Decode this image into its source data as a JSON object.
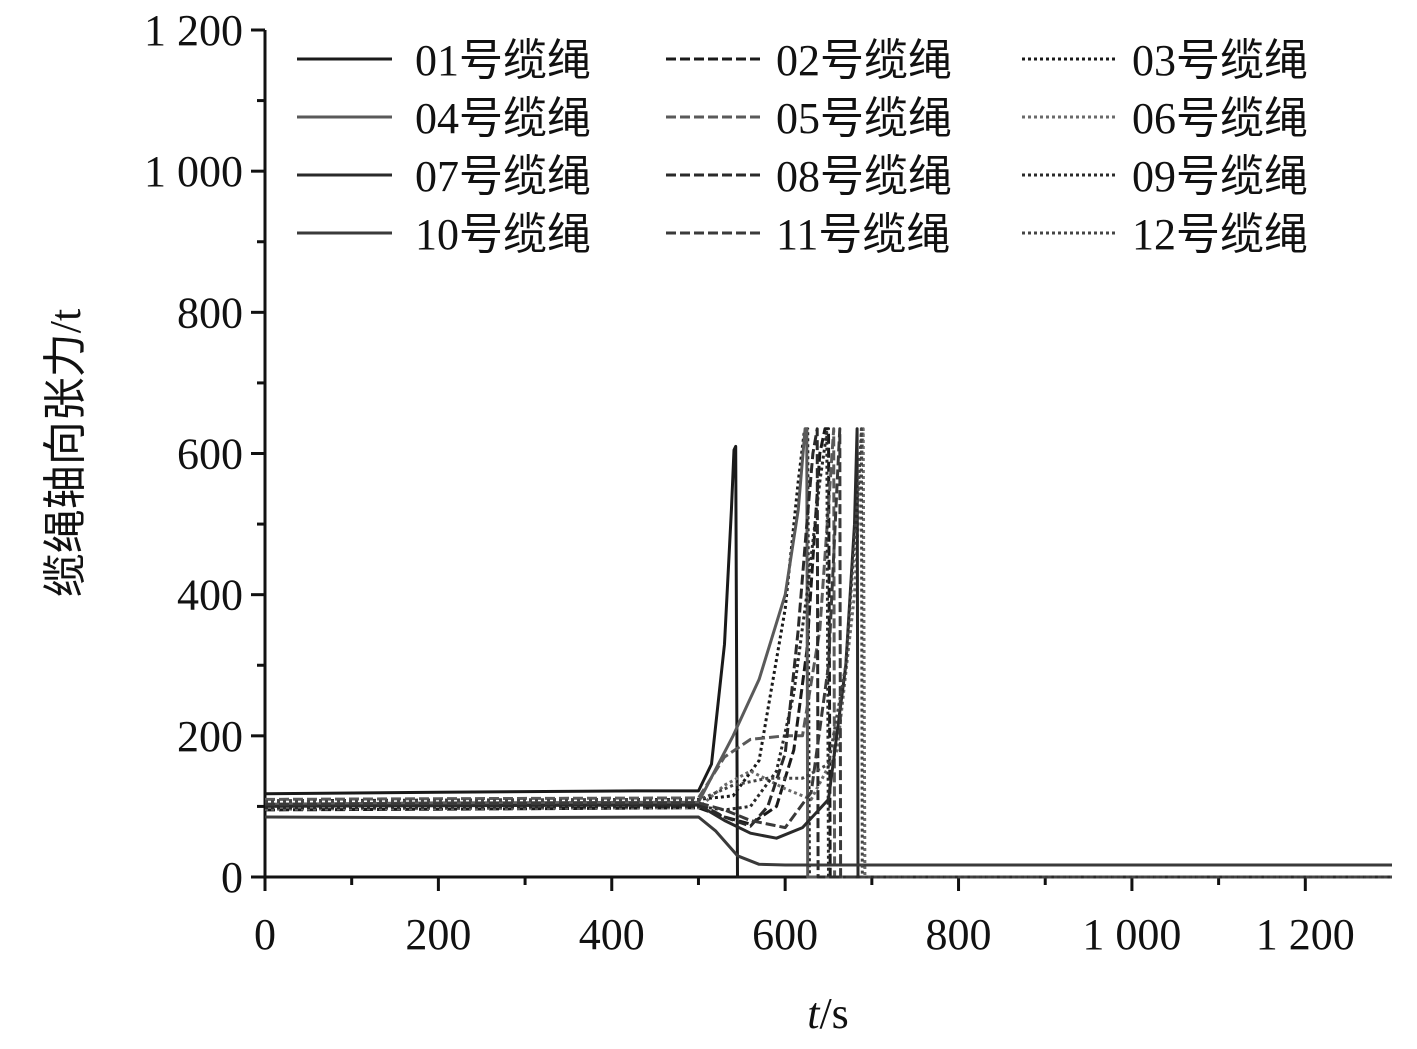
{
  "chart_data": {
    "type": "line",
    "title": "",
    "xlabel": "t/s",
    "xlabel_var": "t",
    "xlabel_unit": "/s",
    "ylabel": "缆绳轴向张力/t",
    "xlim": [
      0,
      1300
    ],
    "ylim": [
      0,
      1200
    ],
    "xticks": [
      {
        "value": 0,
        "label": "0"
      },
      {
        "value": 200,
        "label": "200"
      },
      {
        "value": 400,
        "label": "400"
      },
      {
        "value": 600,
        "label": "600"
      },
      {
        "value": 800,
        "label": "800"
      },
      {
        "value": 1000,
        "label": "1 000"
      },
      {
        "value": 1200,
        "label": "1 200"
      }
    ],
    "yticks": [
      {
        "value": 0,
        "label": "0"
      },
      {
        "value": 200,
        "label": "200"
      },
      {
        "value": 400,
        "label": "400"
      },
      {
        "value": 600,
        "label": "600"
      },
      {
        "value": 800,
        "label": "800"
      },
      {
        "value": 1000,
        "label": "1 000"
      },
      {
        "value": 1200,
        "label": "1 200"
      }
    ],
    "grid": false,
    "legend_position": "top-right",
    "series": [
      {
        "name": "01号缆绳",
        "color": "#1a1a1a",
        "dash": "solid",
        "x": [
          0,
          200,
          430,
          500,
          515,
          530,
          538,
          541,
          543,
          545,
          548,
          1300
        ],
        "y": [
          118,
          120,
          122,
          122,
          160,
          330,
          520,
          605,
          610,
          0,
          0,
          0
        ]
      },
      {
        "name": "02号缆绳",
        "color": "#1a1a1a",
        "dash": "dash",
        "x": [
          0,
          200,
          500,
          530,
          560,
          590,
          610,
          625,
          633,
          640,
          646,
          650,
          652,
          1300
        ],
        "y": [
          95,
          96,
          98,
          85,
          75,
          100,
          180,
          320,
          470,
          600,
          635,
          635,
          0,
          0
        ]
      },
      {
        "name": "03号缆绳",
        "color": "#1a1a1a",
        "dash": "dot",
        "x": [
          0,
          200,
          500,
          540,
          570,
          600,
          615,
          622,
          626,
          628,
          1300
        ],
        "y": [
          108,
          109,
          110,
          115,
          165,
          380,
          560,
          630,
          635,
          0,
          0
        ]
      },
      {
        "name": "04号缆绳",
        "color": "#5a5a5a",
        "dash": "solid",
        "x": [
          0,
          200,
          500,
          540,
          570,
          600,
          615,
          623,
          625,
          626,
          1300
        ],
        "y": [
          103,
          105,
          106,
          200,
          280,
          400,
          520,
          635,
          635,
          0,
          0
        ]
      },
      {
        "name": "05号缆绳",
        "color": "#5a5a5a",
        "dash": "dash",
        "x": [
          0,
          200,
          500,
          530,
          560,
          600,
          620,
          640,
          652,
          656,
          657,
          1300
        ],
        "y": [
          110,
          111,
          112,
          170,
          195,
          200,
          200,
          350,
          560,
          635,
          0,
          0
        ]
      },
      {
        "name": "06号缆绳",
        "color": "#6a6a6a",
        "dash": "dot",
        "x": [
          0,
          200,
          500,
          530,
          560,
          600,
          630,
          660,
          680,
          690,
          692,
          1300
        ],
        "y": [
          96,
          97,
          98,
          130,
          150,
          125,
          110,
          180,
          400,
          635,
          0,
          0
        ]
      },
      {
        "name": "07号缆绳",
        "color": "#2a2a2a",
        "dash": "solid",
        "x": [
          0,
          200,
          500,
          530,
          560,
          590,
          620,
          650,
          670,
          680,
          683,
          684,
          1300
        ],
        "y": [
          100,
          101,
          102,
          80,
          62,
          55,
          70,
          110,
          300,
          500,
          635,
          0,
          0
        ]
      },
      {
        "name": "08号缆绳",
        "color": "#2a2a2a",
        "dash": "dash",
        "x": [
          0,
          200,
          500,
          530,
          560,
          580,
          600,
          615,
          625,
          632,
          637,
          638,
          1300
        ],
        "y": [
          102,
          103,
          104,
          85,
          72,
          100,
          175,
          350,
          500,
          600,
          635,
          0,
          0
        ]
      },
      {
        "name": "09号缆绳",
        "color": "#2a2a2a",
        "dash": "dot",
        "x": [
          0,
          200,
          500,
          530,
          560,
          590,
          610,
          625,
          640,
          648,
          650,
          1300
        ],
        "y": [
          98,
          99,
          100,
          95,
          100,
          150,
          260,
          400,
          560,
          630,
          0,
          0
        ]
      },
      {
        "name": "10号缆绳",
        "color": "#3a3a3a",
        "dash": "solid",
        "x": [
          0,
          200,
          500,
          520,
          545,
          570,
          600,
          1300
        ],
        "y": [
          85,
          84,
          85,
          65,
          30,
          18,
          17,
          17
        ]
      },
      {
        "name": "11号缆绳",
        "color": "#3a3a3a",
        "dash": "dash",
        "x": [
          0,
          200,
          500,
          530,
          560,
          600,
          630,
          650,
          660,
          663,
          664,
          1300
        ],
        "y": [
          103,
          104,
          105,
          95,
          80,
          70,
          120,
          300,
          560,
          635,
          0,
          0
        ]
      },
      {
        "name": "12号缆绳",
        "color": "#444444",
        "dash": "dot",
        "x": [
          0,
          200,
          500,
          540,
          580,
          620,
          650,
          670,
          685,
          688,
          689,
          1300
        ],
        "y": [
          107,
          108,
          109,
          130,
          140,
          140,
          160,
          300,
          560,
          635,
          0,
          0
        ]
      }
    ]
  }
}
